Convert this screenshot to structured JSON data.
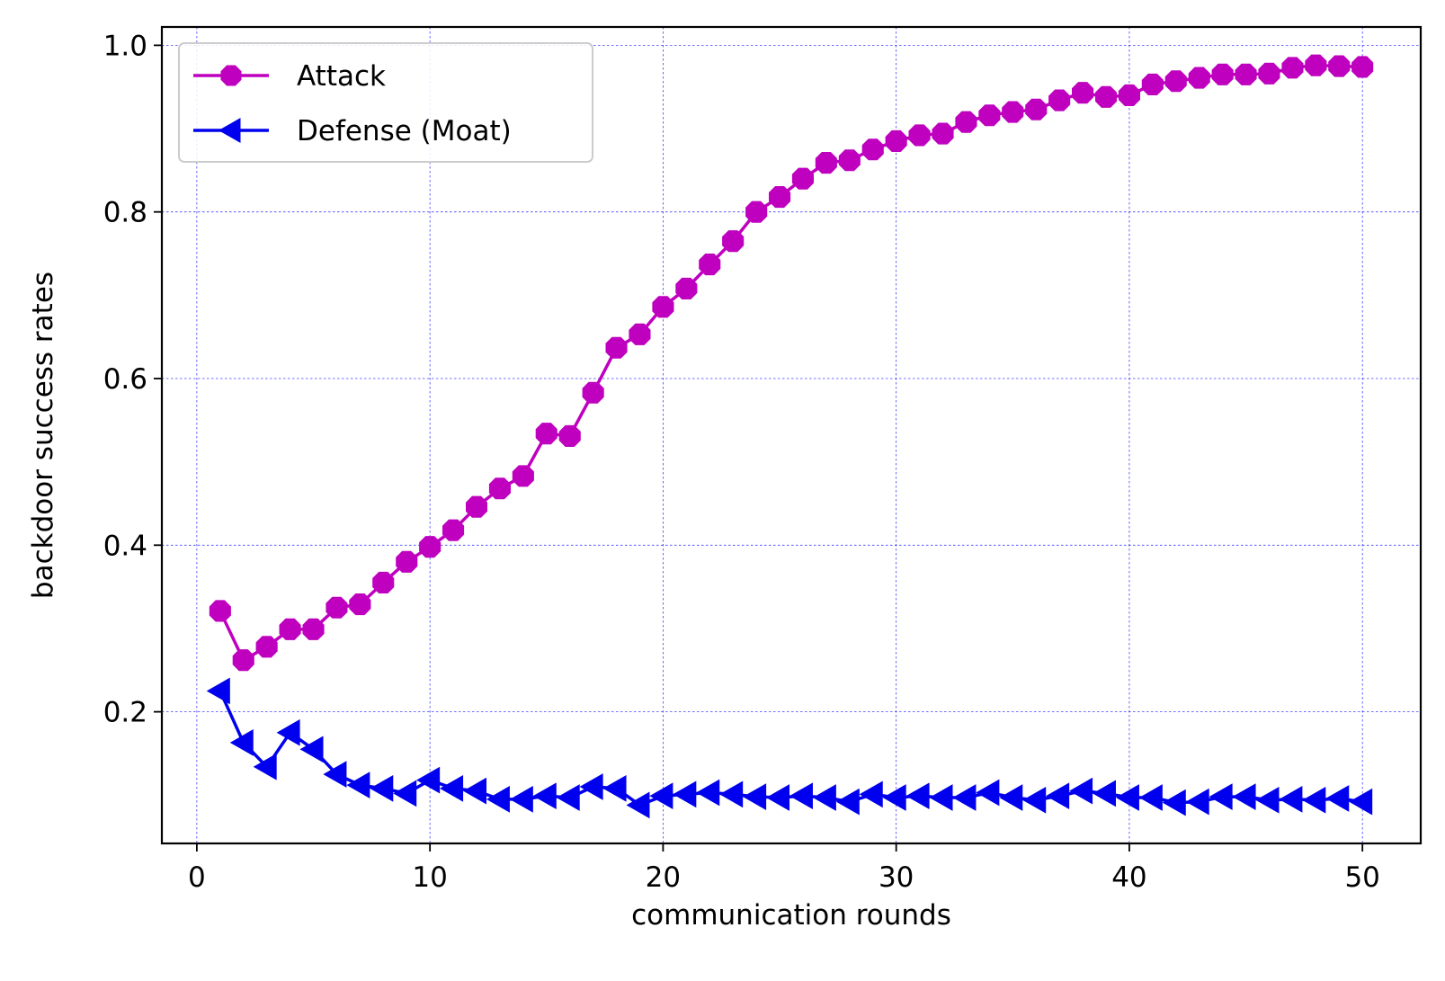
{
  "chart_data": {
    "type": "line",
    "xlabel": "communication rounds",
    "ylabel": "backdoor success rates",
    "xlim": [
      -1.5,
      52.5
    ],
    "ylim": [
      0.042,
      1.022
    ],
    "xticks": [
      0,
      10,
      20,
      30,
      40,
      50
    ],
    "xtick_labels": [
      "0",
      "10",
      "20",
      "30",
      "40",
      "50"
    ],
    "yticks": [
      0.2,
      0.4,
      0.6,
      0.8,
      1.0
    ],
    "ytick_labels": [
      "0.2",
      "0.4",
      "0.6",
      "0.8",
      "1.0"
    ],
    "grid": true,
    "legend_position": "top-left",
    "x": [
      1,
      2,
      3,
      4,
      5,
      6,
      7,
      8,
      9,
      10,
      11,
      12,
      13,
      14,
      15,
      16,
      17,
      18,
      19,
      20,
      21,
      22,
      23,
      24,
      25,
      26,
      27,
      28,
      29,
      30,
      31,
      32,
      33,
      34,
      35,
      36,
      37,
      38,
      39,
      40,
      41,
      42,
      43,
      44,
      45,
      46,
      47,
      48,
      49,
      50
    ],
    "series": [
      {
        "name": "Attack",
        "color": "#bf00bf",
        "marker": "octagon",
        "values": [
          0.321,
          0.262,
          0.278,
          0.299,
          0.299,
          0.325,
          0.329,
          0.355,
          0.38,
          0.398,
          0.418,
          0.446,
          0.468,
          0.483,
          0.534,
          0.531,
          0.583,
          0.637,
          0.653,
          0.686,
          0.708,
          0.737,
          0.765,
          0.8,
          0.818,
          0.84,
          0.859,
          0.862,
          0.875,
          0.885,
          0.892,
          0.894,
          0.908,
          0.916,
          0.92,
          0.923,
          0.934,
          0.943,
          0.938,
          0.94,
          0.953,
          0.957,
          0.961,
          0.965,
          0.965,
          0.966,
          0.973,
          0.976,
          0.975,
          0.974
        ]
      },
      {
        "name": "Defense (Moat)",
        "color": "#0000ee",
        "marker": "triangle-left",
        "values": [
          0.225,
          0.163,
          0.134,
          0.175,
          0.155,
          0.125,
          0.112,
          0.108,
          0.102,
          0.118,
          0.108,
          0.105,
          0.095,
          0.095,
          0.099,
          0.097,
          0.11,
          0.108,
          0.088,
          0.099,
          0.101,
          0.103,
          0.101,
          0.098,
          0.097,
          0.099,
          0.097,
          0.092,
          0.101,
          0.097,
          0.099,
          0.097,
          0.097,
          0.103,
          0.097,
          0.094,
          0.099,
          0.105,
          0.102,
          0.097,
          0.097,
          0.091,
          0.092,
          0.098,
          0.098,
          0.094,
          0.095,
          0.094,
          0.096,
          0.092
        ]
      }
    ]
  }
}
